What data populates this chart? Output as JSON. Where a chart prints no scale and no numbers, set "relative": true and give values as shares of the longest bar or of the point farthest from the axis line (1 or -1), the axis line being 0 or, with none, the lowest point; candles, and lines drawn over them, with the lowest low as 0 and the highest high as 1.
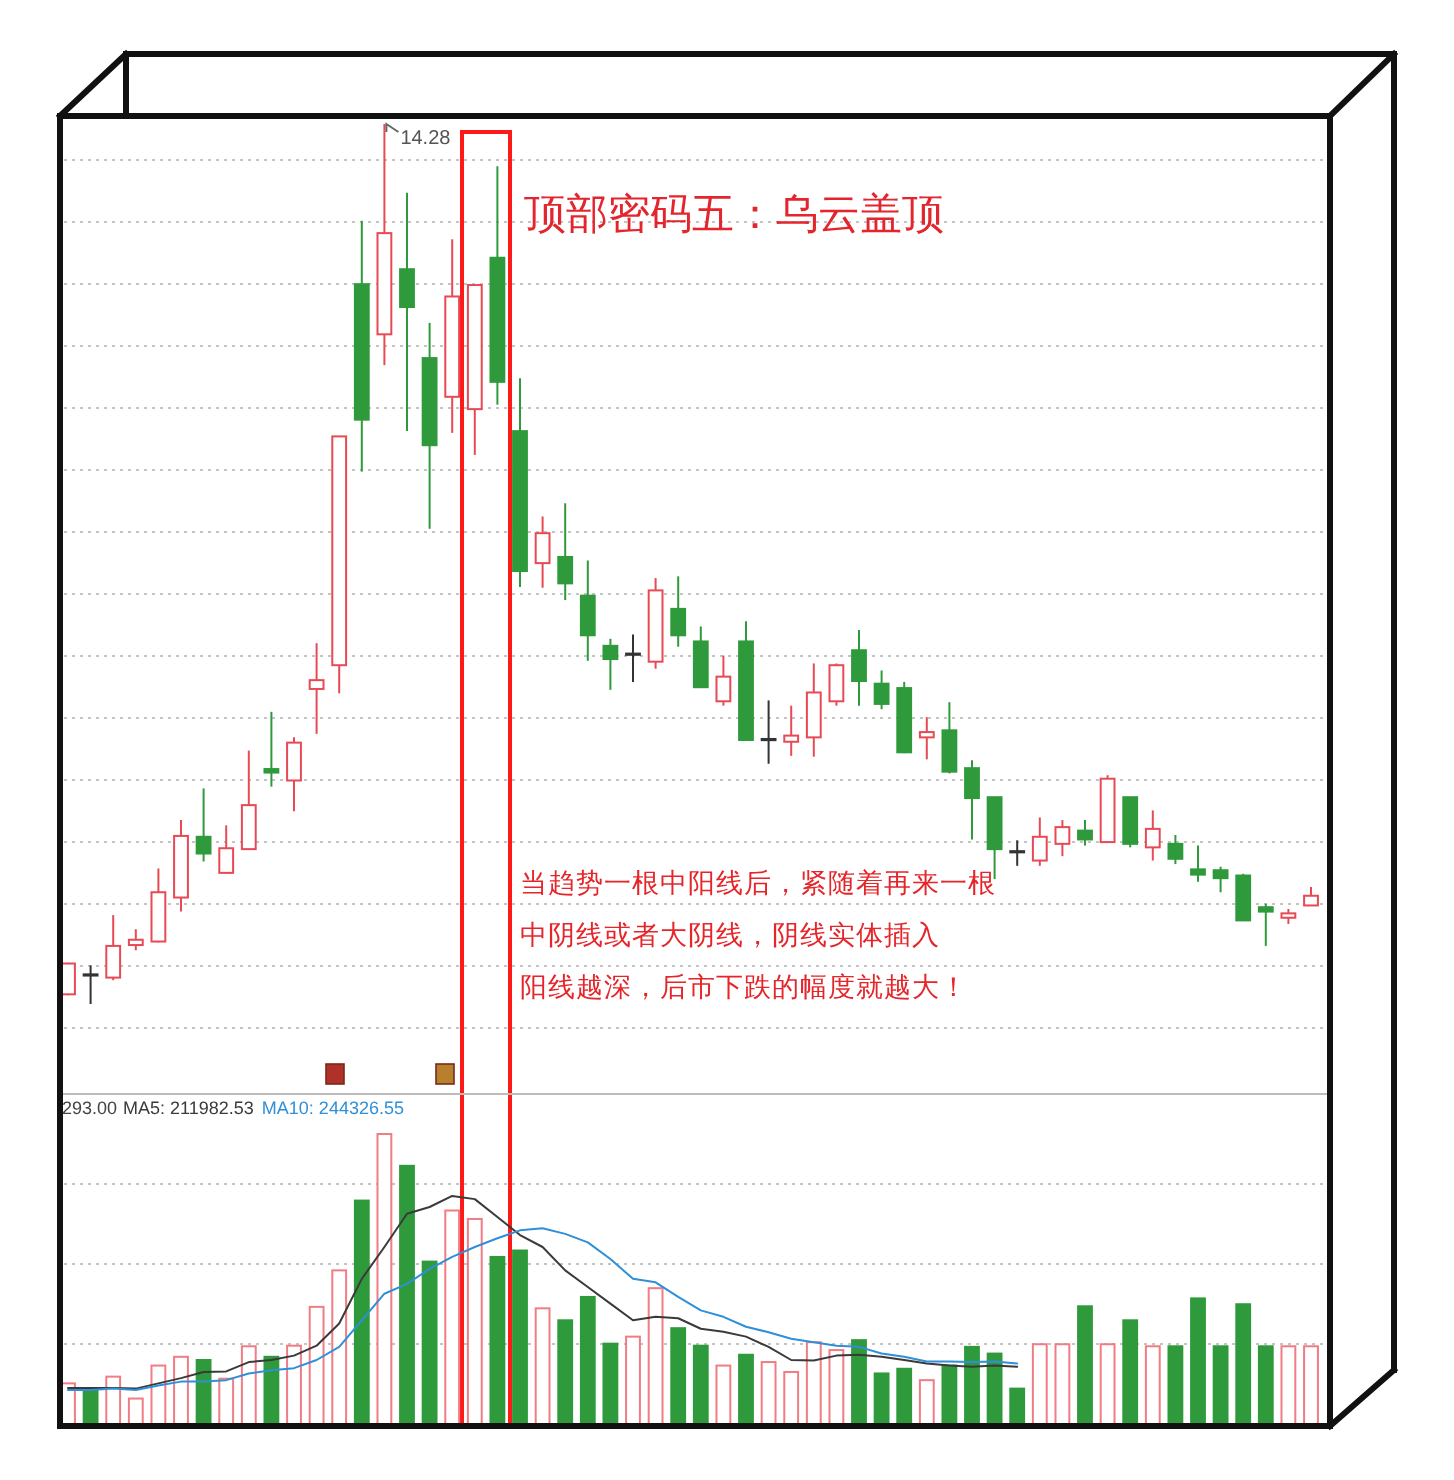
{
  "chart_data": [
    {
      "type": "candlestick",
      "relative": true,
      "title": "顶部密码五：乌云盖顶",
      "categories": [
        null,
        null,
        null,
        null,
        null,
        null,
        null,
        null,
        null,
        null,
        null,
        null,
        null,
        null,
        null,
        null,
        null,
        null,
        null,
        null,
        null,
        null,
        null,
        null,
        null,
        null,
        null,
        null,
        null,
        null,
        null,
        null,
        null,
        null,
        null,
        null,
        null,
        null,
        null,
        null,
        null,
        null,
        null,
        null,
        null,
        null,
        null,
        null,
        null,
        null,
        null,
        null,
        null,
        null,
        null,
        null
      ],
      "ohlc": [
        [
          0.011,
          0.047,
          0.01,
          0.046
        ],
        [
          0.033,
          0.044,
          0,
          0.033
        ],
        [
          0.03,
          0.101,
          0.027,
          0.066
        ],
        [
          0.067,
          0.085,
          0.061,
          0.073
        ],
        [
          0.071,
          0.154,
          0.07,
          0.127
        ],
        [
          0.121,
          0.209,
          0.105,
          0.191
        ],
        [
          0.19,
          0.245,
          0.162,
          0.171
        ],
        [
          0.149,
          0.203,
          0.149,
          0.177
        ],
        [
          0.176,
          0.288,
          0.176,
          0.226
        ],
        [
          0.267,
          0.332,
          0.247,
          0.263
        ],
        [
          0.254,
          0.303,
          0.219,
          0.297
        ],
        [
          0.358,
          0.41,
          0.307,
          0.368
        ],
        [
          0.385,
          0.645,
          0.353,
          0.645
        ],
        [
          0.818,
          0.89,
          0.605,
          0.664
        ],
        [
          0.761,
          1,
          0.726,
          0.876
        ],
        [
          0.835,
          0.922,
          0.651,
          0.792
        ],
        [
          0.734,
          0.774,
          0.54,
          0.635
        ],
        [
          0.69,
          0.869,
          0.649,
          0.804
        ],
        [
          0.676,
          0.817,
          0.624,
          0.817
        ],
        [
          0.848,
          0.952,
          0.681,
          0.707
        ],
        [
          0.651,
          0.711,
          0.474,
          0.492
        ],
        [
          0.501,
          0.554,
          0.473,
          0.535
        ],
        [
          0.508,
          0.569,
          0.459,
          0.478
        ],
        [
          0.464,
          0.504,
          0.39,
          0.419
        ],
        [
          0.407,
          0.415,
          0.357,
          0.392
        ],
        [
          0.397,
          0.42,
          0.366,
          0.398
        ],
        [
          0.389,
          0.484,
          0.381,
          0.47
        ],
        [
          0.449,
          0.486,
          0.406,
          0.419
        ],
        [
          0.412,
          0.429,
          0.36,
          0.36
        ],
        [
          0.344,
          0.396,
          0.339,
          0.372
        ],
        [
          0.412,
          0.435,
          0.3,
          0.3
        ],
        [
          0.3,
          0.345,
          0.273,
          0.301
        ],
        [
          0.298,
          0.339,
          0.282,
          0.305
        ],
        [
          0.303,
          0.387,
          0.281,
          0.354
        ],
        [
          0.344,
          0.387,
          0.339,
          0.385
        ],
        [
          0.402,
          0.425,
          0.339,
          0.367
        ],
        [
          0.364,
          0.379,
          0.335,
          0.341
        ],
        [
          0.359,
          0.366,
          0.285,
          0.286
        ],
        [
          0.303,
          0.326,
          0.278,
          0.309
        ],
        [
          0.311,
          0.343,
          0.262,
          0.264
        ],
        [
          0.268,
          0.277,
          0.187,
          0.234
        ],
        [
          0.235,
          0.235,
          0.142,
          0.176
        ],
        [
          0.173,
          0.186,
          0.157,
          0.173
        ],
        [
          0.163,
          0.212,
          0.157,
          0.19
        ],
        [
          0.182,
          0.209,
          0.168,
          0.201
        ],
        [
          0.197,
          0.209,
          0.18,
          0.187
        ],
        [
          0.184,
          0.26,
          0.184,
          0.256
        ],
        [
          0.235,
          0.235,
          0.178,
          0.182
        ],
        [
          0.178,
          0.22,
          0.163,
          0.199
        ],
        [
          0.182,
          0.192,
          0.159,
          0.165
        ],
        [
          0.153,
          0.18,
          0.139,
          0.147
        ],
        [
          0.152,
          0.156,
          0.127,
          0.143
        ],
        [
          0.146,
          0.148,
          0.095,
          0.095
        ],
        [
          0.11,
          0.114,
          0.066,
          0.105
        ],
        [
          0.098,
          0.108,
          0.091,
          0.103
        ],
        [
          0.112,
          0.133,
          0.112,
          0.123
        ]
      ],
      "colors": [
        "#e84a55",
        "#333333",
        "#e84a55",
        "#e84a55",
        "#e84a55",
        "#e84a55",
        "#2f9a3c",
        "#e84a55",
        "#e84a55",
        "#2f9a3c",
        "#e84a55",
        "#e84a55",
        "#e84a55",
        "#2f9a3c",
        "#e84a55",
        "#2f9a3c",
        "#2f9a3c",
        "#e84a55",
        "#e84a55",
        "#2f9a3c",
        "#2f9a3c",
        "#e84a55",
        "#2f9a3c",
        "#2f9a3c",
        "#2f9a3c",
        "#333333",
        "#e84a55",
        "#2f9a3c",
        "#2f9a3c",
        "#e84a55",
        "#2f9a3c",
        "#333333",
        "#e84a55",
        "#e84a55",
        "#e84a55",
        "#2f9a3c",
        "#2f9a3c",
        "#2f9a3c",
        "#e84a55",
        "#2f9a3c",
        "#2f9a3c",
        "#2f9a3c",
        "#333333",
        "#e84a55",
        "#e84a55",
        "#2f9a3c",
        "#e84a55",
        "#2f9a3c",
        "#e84a55",
        "#2f9a3c",
        "#2f9a3c",
        "#2f9a3c",
        "#2f9a3c",
        "#2f9a3c",
        "#e84a55",
        "#e84a55"
      ],
      "annotations": [
        "14.28",
        "当趋势一根中阳线后，紧随着再来一根",
        "中阴线或者大阴线，阴线实体插入",
        "阳线越深，后市下跌的幅度就越大！"
      ],
      "grid": "y"
    },
    {
      "type": "bar",
      "relative": true,
      "categories": [
        null,
        null,
        null,
        null,
        null,
        null,
        null,
        null,
        null,
        null,
        null,
        null,
        null,
        null,
        null,
        null,
        null,
        null,
        null,
        null,
        null,
        null,
        null,
        null,
        null,
        null,
        null,
        null,
        null,
        null,
        null,
        null,
        null,
        null,
        null,
        null,
        null,
        null,
        null,
        null,
        null,
        null,
        null,
        null,
        null,
        null,
        null,
        null,
        null,
        null,
        null,
        null,
        null,
        null,
        null,
        null
      ],
      "series": [
        {
          "values": [
            0.146,
            0.13,
            0.169,
            0.094,
            0.207,
            0.237,
            0.226,
            0.162,
            0.273,
            0.237,
            0.275,
            0.408,
            0.533,
            0.772,
            1,
            0.891,
            0.563,
            0.738,
            0.709,
            0.579,
            0.601,
            0.403,
            0.362,
            0.442,
            0.282,
            0.306,
            0.472,
            0.335,
            0.275,
            0.207,
            0.244,
            0.219,
            0.185,
            0.287,
            0.26,
            0.294,
            0.18,
            0.196,
            0.157,
            0.207,
            0.271,
            0.248,
            0.128,
            0.28,
            0.28,
            0.41,
            0.28,
            0.362,
            0.273,
            0.273,
            0.437,
            0.273,
            0.417,
            0.273,
            0.273,
            0.273
          ],
          "colors": [
            "#f07c84",
            "#2f9a3c",
            "#f07c84",
            "#f07c84",
            "#f07c84",
            "#f07c84",
            "#2f9a3c",
            "#f07c84",
            "#f07c84",
            "#2f9a3c",
            "#f07c84",
            "#f07c84",
            "#f07c84",
            "#2f9a3c",
            "#f07c84",
            "#2f9a3c",
            "#2f9a3c",
            "#f07c84",
            "#f07c84",
            "#2f9a3c",
            "#2f9a3c",
            "#f07c84",
            "#2f9a3c",
            "#2f9a3c",
            "#2f9a3c",
            "#f07c84",
            "#f07c84",
            "#2f9a3c",
            "#2f9a3c",
            "#f07c84",
            "#2f9a3c",
            "#f07c84",
            "#f07c84",
            "#f07c84",
            "#f07c84",
            "#2f9a3c",
            "#2f9a3c",
            "#2f9a3c",
            "#f07c84",
            "#2f9a3c",
            "#2f9a3c",
            "#2f9a3c",
            "#2f9a3c",
            "#f07c84",
            "#f07c84",
            "#2f9a3c",
            "#f07c84",
            "#2f9a3c",
            "#f07c84",
            "#2f9a3c",
            "#2f9a3c",
            "#2f9a3c",
            "#2f9a3c",
            "#2f9a3c",
            "#f07c84",
            "#f07c84"
          ]
        },
        {
          "name": "MA5: 211982.53",
          "type": "line",
          "color": "#3a3a3a",
          "values": [
            0.13,
            0.13,
            0.13,
            0.128,
            0.146,
            0.164,
            0.185,
            0.187,
            0.219,
            0.226,
            0.241,
            0.275,
            0.351,
            0.504,
            0.613,
            0.727,
            0.75,
            0.788,
            0.777,
            0.716,
            0.654,
            0.613,
            0.533,
            0.476,
            0.419,
            0.362,
            0.374,
            0.369,
            0.333,
            0.323,
            0.306,
            0.271,
            0.226,
            0.224,
            0.241,
            0.244,
            0.237,
            0.226,
            0.214,
            0.207,
            0.203,
            0.207,
            0.203,
            null,
            null,
            null,
            null,
            null,
            null,
            null,
            null,
            null,
            null,
            null,
            null,
            null
          ]
        },
        {
          "name": "MA10: 244326.55",
          "type": "line",
          "color": "#2f8fd8",
          "values": [
            0.123,
            0.123,
            0.128,
            0.123,
            0.139,
            0.152,
            0.152,
            0.157,
            0.18,
            0.191,
            0.198,
            0.226,
            0.271,
            0.362,
            0.453,
            0.487,
            0.538,
            0.579,
            0.613,
            0.643,
            0.67,
            0.677,
            0.658,
            0.629,
            0.572,
            0.504,
            0.492,
            0.442,
            0.396,
            0.374,
            0.34,
            0.321,
            0.299,
            0.287,
            0.275,
            0.271,
            0.248,
            0.237,
            0.221,
            0.221,
            0.219,
            0.221,
            0.214,
            null,
            null,
            null,
            null,
            null,
            null,
            null,
            null,
            null,
            null,
            null,
            null,
            null
          ]
        }
      ],
      "annotations": [
        "293.00"
      ],
      "legend": "top left",
      "grid": "y"
    }
  ]
}
